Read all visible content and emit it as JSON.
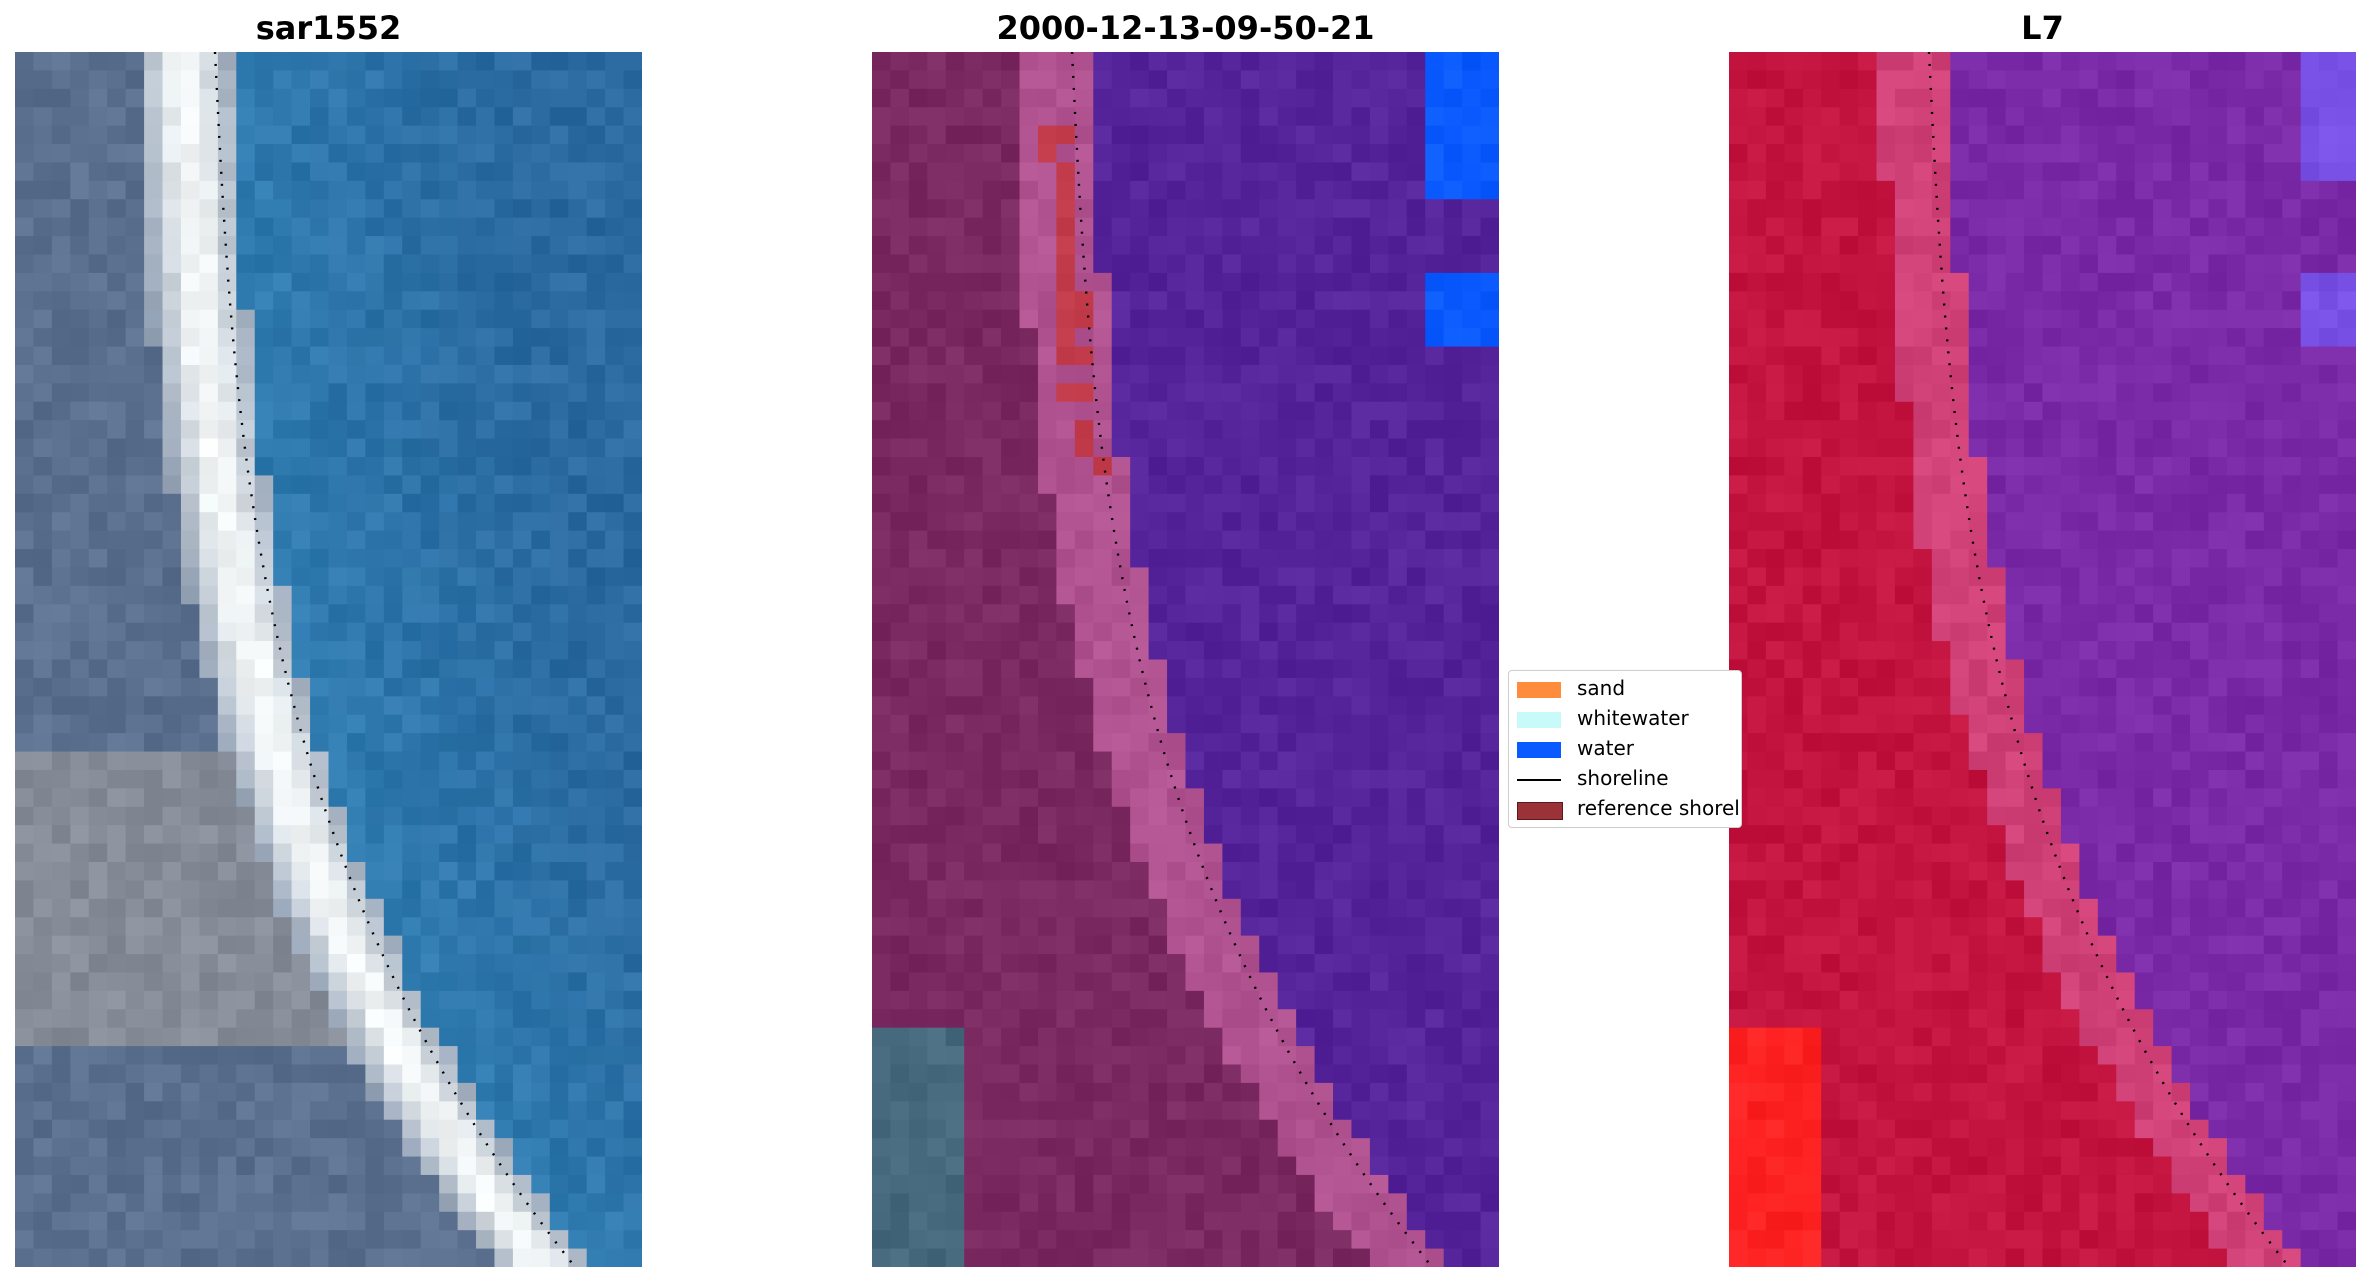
{
  "panels": [
    {
      "title": "sar1552"
    },
    {
      "title": "2000-12-13-09-50-21"
    },
    {
      "title": "L7"
    }
  ],
  "legend": {
    "items": [
      {
        "label": "sand",
        "color": "#ff8c3c",
        "kind": "patch"
      },
      {
        "label": "whitewater",
        "color": "#c8fafa",
        "kind": "patch"
      },
      {
        "label": "water",
        "color": "#0a5aff",
        "kind": "patch"
      },
      {
        "label": "shoreline",
        "color": "#000000",
        "kind": "line"
      },
      {
        "label": "reference shoreline",
        "color": "#9b3238",
        "kind": "patch"
      }
    ]
  },
  "colors": {
    "land_rgb": "#5b6f8e",
    "sea_rgb": "#2f7bb0",
    "foam_rgb": "#f2f6f6",
    "class_land": "#7a2a60",
    "class_water": "#55249b",
    "ndwi_land": "#c2143e",
    "ndwi_water": "#7a2aa6",
    "ndwi_red": "#ff2222"
  }
}
